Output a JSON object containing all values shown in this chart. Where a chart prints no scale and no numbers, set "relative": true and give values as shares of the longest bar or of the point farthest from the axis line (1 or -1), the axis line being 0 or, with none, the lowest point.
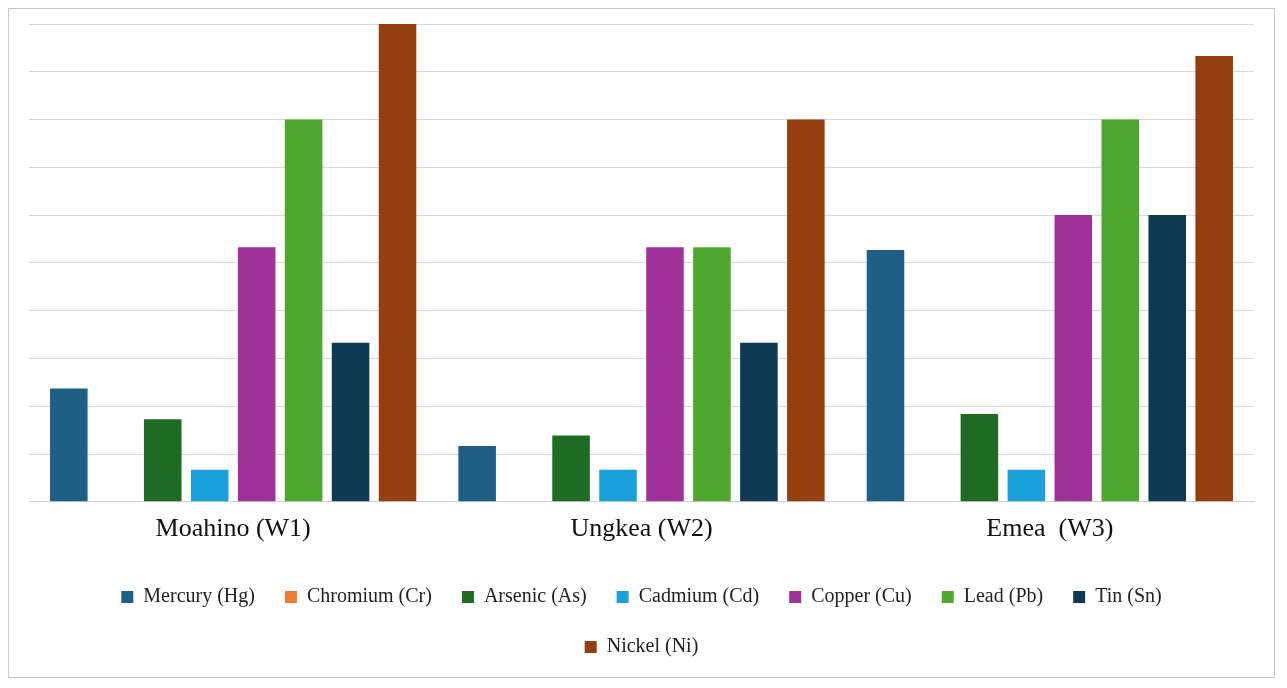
{
  "chart_data": {
    "type": "bar",
    "relative": true,
    "categories": [
      "Moahino (W1)",
      "Ungkea (W2)",
      "Emea  (W3)"
    ],
    "series": [
      {
        "name": "Mercury (Hg)",
        "color": "#1f5f85",
        "values": [
          0.237,
          0.117,
          0.527
        ]
      },
      {
        "name": "Chromium (Cr)",
        "color": "#ed7d31",
        "values": [
          0,
          0,
          0
        ]
      },
      {
        "name": "Arsenic (As)",
        "color": "#1e6b24",
        "values": [
          0.173,
          0.139,
          0.184
        ]
      },
      {
        "name": "Cadmium (Cd)",
        "color": "#1aa0dc",
        "values": [
          0.067,
          0.067,
          0.067
        ]
      },
      {
        "name": "Copper (Cu)",
        "color": "#a0309a",
        "values": [
          0.533,
          0.533,
          0.6
        ]
      },
      {
        "name": "Lead (Pb)",
        "color": "#4ea72e",
        "values": [
          0.8,
          0.533,
          0.8
        ]
      },
      {
        "name": "Tin (Sn)",
        "color": "#0e3a53",
        "values": [
          0.333,
          0.333,
          0.6
        ]
      },
      {
        "name": "Nickel (Ni)",
        "color": "#953f10",
        "values": [
          1,
          0.8,
          0.933
        ]
      }
    ],
    "grid": "y",
    "legend": "bottom"
  }
}
